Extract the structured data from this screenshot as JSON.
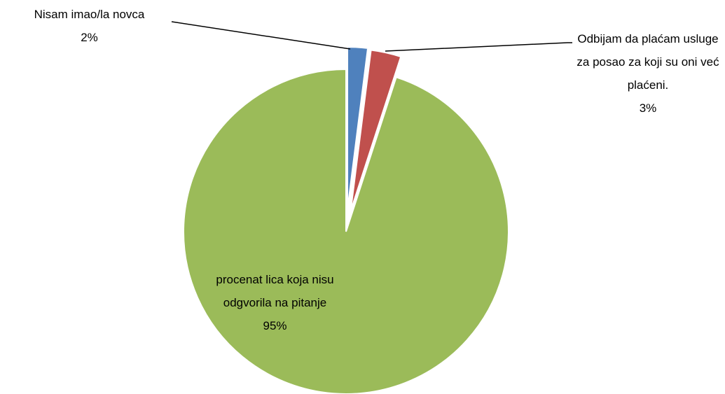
{
  "chart_data": {
    "type": "pie",
    "categories": [
      "Nisam imao/la novca",
      "Odbijam da plaćam usluge za posao za koji su oni već plaćeni.",
      "procenat lica koja nisu odgvorila na pitanje"
    ],
    "values": [
      2,
      3,
      95
    ],
    "value_labels": [
      "2%",
      "3%",
      "95%"
    ],
    "colors": [
      "#4f81bd",
      "#c0504d",
      "#9bbb59"
    ]
  }
}
